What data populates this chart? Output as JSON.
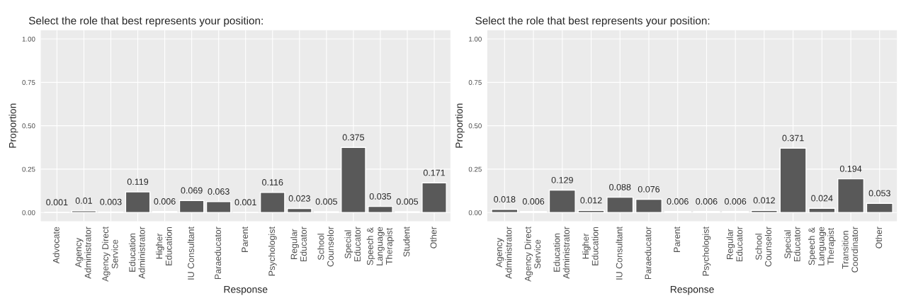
{
  "chart_data": [
    {
      "type": "bar",
      "title": "Select the role that best represents your position:",
      "xlabel": "Response",
      "ylabel": "Proportion",
      "categories": [
        "Advocate",
        "Agency\nAdministrator",
        "Agency Direct\nService",
        "Education\nAdministrator",
        "Higher\nEducation",
        "IU Consultant",
        "Paraeducator",
        "Parent",
        "Psychologist",
        "Regular\nEducator",
        "School\nCounselor",
        "Special\nEducator",
        "Speech &\nLanguage\nTherapist",
        "Student",
        "Other"
      ],
      "values": [
        0.001,
        0.01,
        0.003,
        0.119,
        0.006,
        0.069,
        0.063,
        0.001,
        0.116,
        0.023,
        0.005,
        0.375,
        0.035,
        0.005,
        0.171
      ],
      "color": "#595959",
      "data_labels": true,
      "grid": true,
      "ylim": [
        -0.05,
        1.05
      ],
      "yticks": [
        {
          "value": 0,
          "label": "0.00"
        },
        {
          "value": 0.25,
          "label": "0.25"
        },
        {
          "value": 0.5,
          "label": "0.50"
        },
        {
          "value": 0.75,
          "label": "0.75"
        },
        {
          "value": 1,
          "label": "1.00"
        }
      ]
    },
    {
      "type": "bar",
      "title": "Select the role that best represents your position:",
      "xlabel": "Response",
      "ylabel": "Proportion",
      "categories": [
        "Agency\nAdministrator",
        "Agency Direct\nService",
        "Education\nAdministrator",
        "Higher\nEducation",
        "IU Consultant",
        "Paraeducator",
        "Parent",
        "Psychologist",
        "Regular\nEducator",
        "School\nCounselor",
        "Special\nEducator",
        "Speech &\nLanguage\nTherapist",
        "Transition\nCoordinator",
        "Other"
      ],
      "values": [
        0.018,
        0.006,
        0.129,
        0.012,
        0.088,
        0.076,
        0.006,
        0.006,
        0.006,
        0.012,
        0.371,
        0.024,
        0.194,
        0.053
      ],
      "color": "#595959",
      "data_labels": true,
      "grid": true,
      "ylim": [
        -0.05,
        1.05
      ],
      "yticks": [
        {
          "value": 0,
          "label": "0.00"
        },
        {
          "value": 0.25,
          "label": "0.25"
        },
        {
          "value": 0.5,
          "label": "0.50"
        },
        {
          "value": 0.75,
          "label": "0.75"
        },
        {
          "value": 1,
          "label": "1.00"
        }
      ]
    }
  ]
}
